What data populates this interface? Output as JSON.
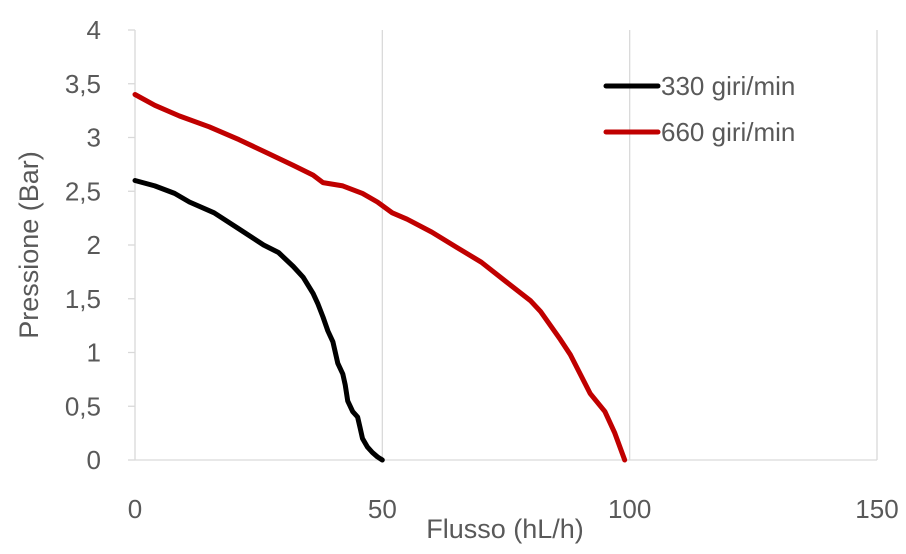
{
  "chart_data": {
    "type": "line",
    "title": "",
    "xlabel": "Flusso (hL/h)",
    "ylabel": "Pressione (Bar)",
    "xlim": [
      0,
      150
    ],
    "ylim": [
      0,
      4
    ],
    "x_ticks": [
      "0",
      "50",
      "100",
      "150"
    ],
    "y_ticks": [
      "0",
      "0,5",
      "1",
      "1,5",
      "2",
      "2,5",
      "3",
      "3,5",
      "4"
    ],
    "grid": "vertical",
    "legend_position": "top-right",
    "series": [
      {
        "name": "330 giri/min",
        "color": "#000000",
        "x": [
          0,
          4,
          8,
          11,
          16,
          21,
          26,
          29,
          32,
          34,
          36,
          37,
          38,
          39,
          40,
          41,
          42,
          42.5,
          43,
          44,
          45,
          45.5,
          46,
          47,
          48,
          49,
          50
        ],
        "y": [
          2.6,
          2.55,
          2.48,
          2.4,
          2.3,
          2.15,
          2.0,
          1.93,
          1.8,
          1.7,
          1.55,
          1.45,
          1.33,
          1.2,
          1.1,
          0.9,
          0.8,
          0.7,
          0.55,
          0.45,
          0.4,
          0.3,
          0.2,
          0.12,
          0.07,
          0.03,
          0
        ]
      },
      {
        "name": "660 giri/min",
        "color": "#c00000",
        "x": [
          0,
          4,
          9,
          15,
          21,
          27,
          32,
          36,
          38,
          42,
          46,
          49,
          52,
          55,
          60,
          65,
          70,
          75,
          80,
          82,
          84,
          86,
          88,
          90,
          92,
          95,
          97,
          99
        ],
        "y": [
          3.4,
          3.3,
          3.2,
          3.1,
          2.98,
          2.85,
          2.74,
          2.65,
          2.58,
          2.55,
          2.48,
          2.4,
          2.3,
          2.24,
          2.12,
          1.98,
          1.84,
          1.66,
          1.48,
          1.38,
          1.25,
          1.12,
          0.98,
          0.8,
          0.62,
          0.45,
          0.25,
          0
        ]
      }
    ]
  }
}
